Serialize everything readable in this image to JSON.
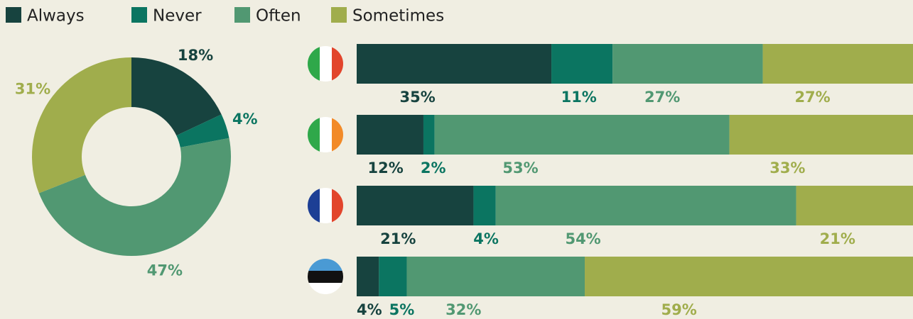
{
  "chart_data": [
    {
      "type": "pie",
      "values": [
        18,
        4,
        47,
        31
      ],
      "value_labels": [
        "18%",
        "4%",
        "47%",
        "31%"
      ],
      "colors": [
        "#17433f",
        "#0b7561",
        "#519872",
        "#a0ad4c"
      ],
      "donut": true
    },
    {
      "type": "stacked_bar",
      "orientation": "horizontal",
      "categories": [
        null,
        null,
        null,
        null
      ],
      "xlim": [
        0,
        100
      ],
      "legend": "top",
      "series": [
        {
          "name": "Always",
          "color": "#17433f",
          "values": [
            35,
            12,
            21,
            4
          ],
          "value_labels": [
            "35%",
            "12%",
            "21%",
            "4%"
          ]
        },
        {
          "name": "Never",
          "color": "#0b7561",
          "values": [
            11,
            2,
            4,
            5
          ],
          "value_labels": [
            "11%",
            "2%",
            "4%",
            "5%"
          ]
        },
        {
          "name": "Often",
          "color": "#519872",
          "values": [
            27,
            53,
            54,
            32
          ],
          "value_labels": [
            "27%",
            "53%",
            "54%",
            "32%"
          ]
        },
        {
          "name": "Sometimes",
          "color": "#a0ad4c",
          "values": [
            27,
            33,
            21,
            59
          ],
          "value_labels": [
            "27%",
            "33%",
            "21%",
            "59%"
          ]
        }
      ]
    }
  ]
}
